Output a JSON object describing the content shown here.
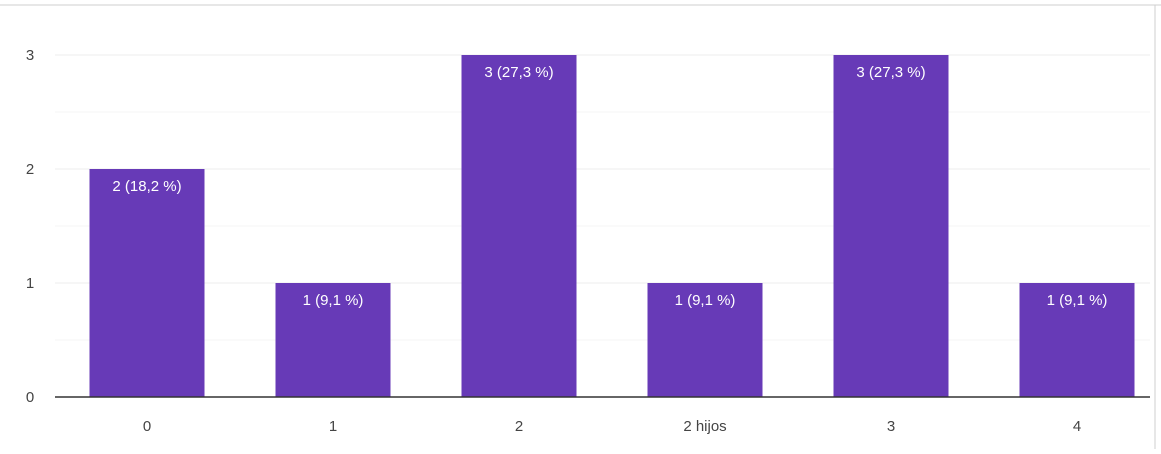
{
  "chart_data": {
    "type": "bar",
    "categories": [
      "0",
      "1",
      "2",
      "2 hijos",
      "3",
      "4"
    ],
    "values": [
      2,
      1,
      3,
      1,
      3,
      1
    ],
    "data_labels": [
      "2 (18,2 %)",
      "1 (9,1 %)",
      "3 (27,3 %)",
      "1 (9,1 %)",
      "3 (27,3 %)",
      "1 (9,1 %)"
    ],
    "yticks": [
      "0",
      "1",
      "2",
      "3"
    ],
    "ylim": [
      0,
      3
    ],
    "grid": true,
    "legend": "none",
    "colors": {
      "bar": "#673ab7",
      "bar_label": "#ffffff",
      "grid": "#ececec",
      "minor_grid": "#f6f6f6",
      "axis": "#333333",
      "text": "#444444",
      "border": "#cfcfcf"
    }
  }
}
